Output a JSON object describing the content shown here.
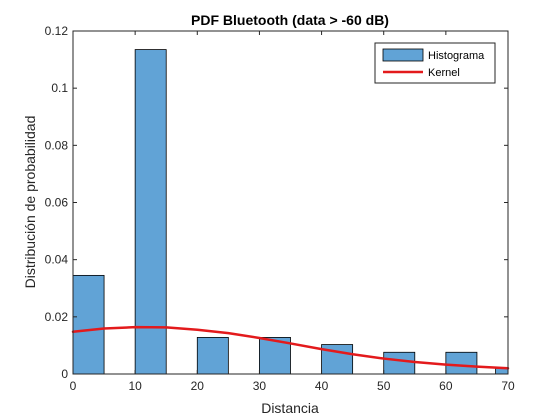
{
  "chart_data": {
    "type": "bar",
    "title": "PDF Bluetooth (data > -60 dB)",
    "xlabel": "Distancia",
    "ylabel": "Distribución de probabilidad",
    "xlim": [
      0,
      70
    ],
    "ylim": [
      0,
      0.12
    ],
    "xticks": [
      "0",
      "10",
      "20",
      "30",
      "40",
      "50",
      "60",
      "70"
    ],
    "yticks": [
      "0",
      "0.02",
      "0.04",
      "0.06",
      "0.08",
      "0.1",
      "0.12"
    ],
    "grid": false,
    "legend_position": "top-right",
    "series": [
      {
        "name": "Histograma",
        "kind": "histogram",
        "color": "#61a3d6",
        "bins": [
          {
            "x0": 0,
            "x1": 5,
            "value": 0.0345
          },
          {
            "x0": 10,
            "x1": 15,
            "value": 0.1135
          },
          {
            "x0": 20,
            "x1": 25,
            "value": 0.0128
          },
          {
            "x0": 30,
            "x1": 35,
            "value": 0.0128
          },
          {
            "x0": 40,
            "x1": 45,
            "value": 0.0103
          },
          {
            "x0": 50,
            "x1": 55,
            "value": 0.0076
          },
          {
            "x0": 60,
            "x1": 65,
            "value": 0.0076
          },
          {
            "x0": 68,
            "x1": 70,
            "value": 0.002
          }
        ]
      },
      {
        "name": "Kernel",
        "kind": "line",
        "color": "#e31a1c",
        "x": [
          0,
          5,
          10,
          15,
          20,
          25,
          30,
          35,
          40,
          45,
          50,
          55,
          60,
          65,
          70
        ],
        "y": [
          0.0148,
          0.0159,
          0.0164,
          0.0163,
          0.0155,
          0.0143,
          0.0126,
          0.0107,
          0.0087,
          0.0069,
          0.0054,
          0.0042,
          0.0033,
          0.0026,
          0.002
        ]
      }
    ]
  }
}
